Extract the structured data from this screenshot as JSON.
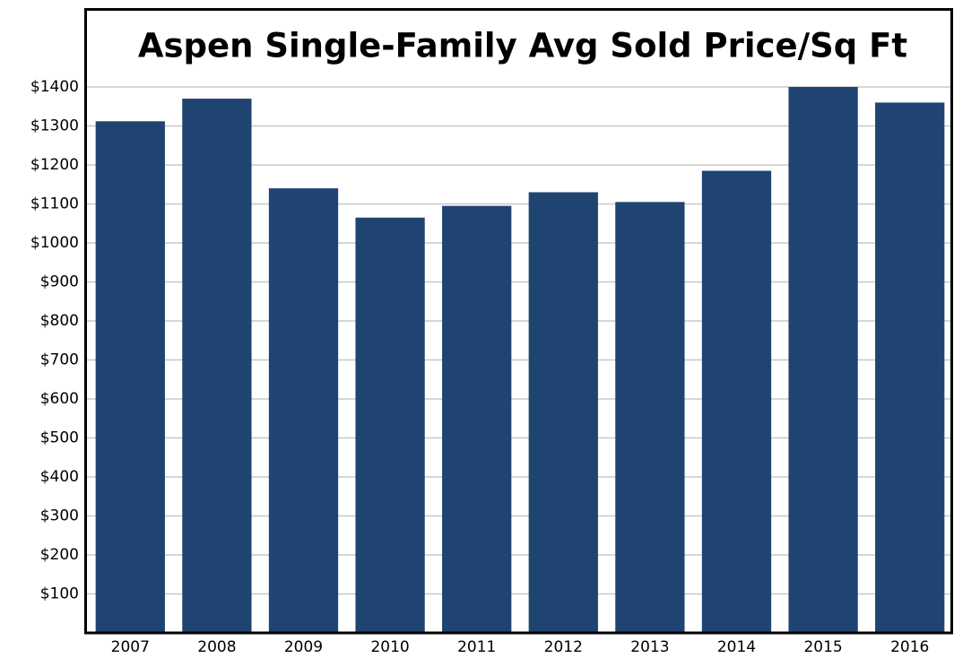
{
  "chart_data": {
    "type": "bar",
    "title": "Aspen Single-Family Avg Sold Price/Sq Ft",
    "categories": [
      "2007",
      "2008",
      "2009",
      "2010",
      "2011",
      "2012",
      "2013",
      "2014",
      "2015",
      "2016"
    ],
    "values": [
      1312,
      1370,
      1140,
      1065,
      1095,
      1130,
      1105,
      1185,
      1400,
      1360
    ],
    "color": "#1f4472",
    "ylim": [
      0,
      1600
    ],
    "yticks": [
      {
        "value": 100,
        "label": "$100"
      },
      {
        "value": 200,
        "label": "$200"
      },
      {
        "value": 300,
        "label": "$300"
      },
      {
        "value": 400,
        "label": "$400"
      },
      {
        "value": 500,
        "label": "$500"
      },
      {
        "value": 600,
        "label": "$600"
      },
      {
        "value": 700,
        "label": "$700"
      },
      {
        "value": 800,
        "label": "$800"
      },
      {
        "value": 900,
        "label": "$900"
      },
      {
        "value": 1000,
        "label": "$1000"
      },
      {
        "value": 1100,
        "label": "$1100"
      },
      {
        "value": 1200,
        "label": "$1200"
      },
      {
        "value": 1300,
        "label": "$1300"
      },
      {
        "value": 1400,
        "label": "$1400"
      }
    ],
    "grid": true
  }
}
